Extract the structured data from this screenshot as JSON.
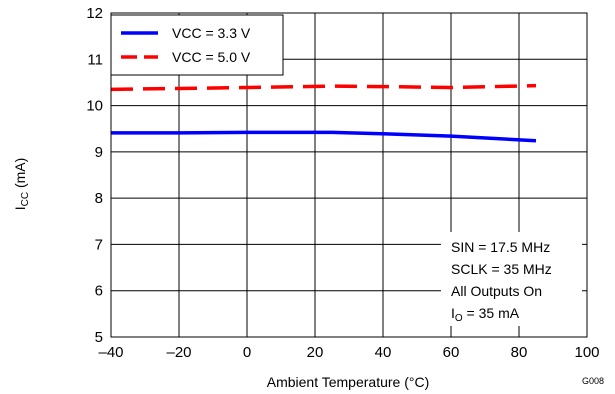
{
  "chart_data": {
    "type": "line",
    "xlabel": "Ambient Temperature (°C)",
    "ylabel": {
      "main": "I",
      "sub": "CC",
      "unit": " (mA)"
    },
    "xlim": [
      -40,
      100
    ],
    "ylim": [
      5,
      12
    ],
    "xticks": [
      -40,
      -20,
      0,
      20,
      40,
      60,
      80,
      100
    ],
    "yticks": [
      5,
      6,
      7,
      8,
      9,
      10,
      11,
      12
    ],
    "xtick_labels": [
      "–40",
      "–20",
      "0",
      "20",
      "40",
      "60",
      "80",
      "100"
    ],
    "ytick_labels": [
      "5",
      "6",
      "7",
      "8",
      "9",
      "10",
      "11",
      "12"
    ],
    "grid": true,
    "legend_position": "top-left",
    "series": [
      {
        "name": "VCC = 3.3 V",
        "color": "#0000ff",
        "dash": "solid",
        "x": [
          -40,
          -20,
          0,
          25,
          40,
          60,
          85
        ],
        "y": [
          9.41,
          9.41,
          9.42,
          9.42,
          9.39,
          9.34,
          9.24
        ]
      },
      {
        "name": "VCC = 5.0 V",
        "color": "#ff0000",
        "dash": "dashed",
        "x": [
          -40,
          -20,
          0,
          25,
          40,
          60,
          85
        ],
        "y": [
          10.35,
          10.37,
          10.39,
          10.42,
          10.41,
          10.39,
          10.43
        ]
      }
    ],
    "annotation": [
      {
        "text": "SIN = 17.5 MHz"
      },
      {
        "text": "SCLK = 35 MHz"
      },
      {
        "text": "All Outputs On"
      },
      {
        "main": "I",
        "sub": "O",
        "rest": " = 35 mA"
      }
    ],
    "figure_id": "G008"
  }
}
